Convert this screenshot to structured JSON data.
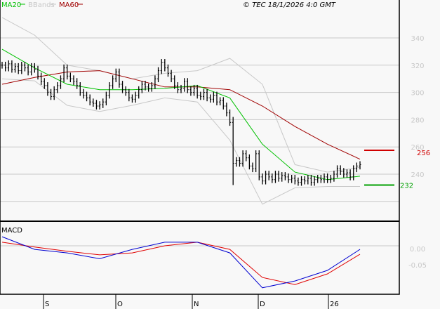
{
  "chart_data": {
    "type": "line",
    "legend": [
      {
        "name": "MA20",
        "color": "#00c000"
      },
      {
        "name": "BBands",
        "color": "#c8c8c8"
      },
      {
        "name": "MA60",
        "color": "#a00000"
      }
    ],
    "legend_placement": "top-left",
    "copyright": "© TEC 18/1/2026 4:0 GMT",
    "x_ticks": [
      "S",
      "O",
      "N",
      "D",
      "26"
    ],
    "price_axis": {
      "ticks": [
        240,
        260,
        280,
        300,
        320,
        340
      ],
      "ylim": [
        200,
        364
      ],
      "grid": true
    },
    "macd_axis": {
      "title": "MACD",
      "ticks": [
        "0.00",
        "-0.05"
      ],
      "values": [
        0,
        -0.05
      ],
      "ylim": [
        -0.145,
        0.08
      ]
    },
    "markers": [
      {
        "label": "256",
        "value": 256,
        "color": "#d00000"
      },
      {
        "label": "232",
        "value": 232,
        "color": "#00a000"
      }
    ],
    "closes": [
      320,
      318,
      321,
      317,
      319,
      316,
      320,
      318,
      315,
      319,
      317,
      312,
      308,
      305,
      300,
      297,
      302,
      305,
      310,
      318,
      312,
      310,
      308,
      305,
      300,
      298,
      296,
      293,
      292,
      290,
      291,
      293,
      298,
      305,
      310,
      315,
      306,
      302,
      300,
      296,
      295,
      298,
      302,
      306,
      304,
      303,
      305,
      310,
      316,
      322,
      318,
      314,
      310,
      305,
      302,
      303,
      308,
      302,
      300,
      303,
      298,
      297,
      300,
      296,
      295,
      298,
      293,
      294,
      290,
      285,
      278,
      248,
      250,
      248,
      255,
      252,
      246,
      244,
      255,
      238,
      235,
      240,
      238,
      236,
      240,
      237,
      239,
      238,
      236,
      237,
      235,
      234,
      236,
      235,
      237,
      234,
      236,
      237,
      236,
      238,
      236,
      237,
      240,
      244,
      242,
      240,
      241,
      238,
      244,
      246,
      247
    ],
    "ma20": [
      331.7,
      318,
      306,
      302,
      302,
      303,
      305,
      296,
      262,
      241.5,
      236,
      238.5
    ],
    "ma60": [
      306,
      311,
      315,
      316,
      310,
      304,
      304,
      302,
      290,
      275,
      262,
      251
    ],
    "bb_upper": [
      355,
      342,
      320,
      316,
      310,
      314,
      316,
      325,
      306,
      247,
      241.5,
      245
    ],
    "bb_lower": [
      310,
      308.5,
      290.5,
      286,
      290.5,
      296,
      293,
      265,
      218,
      230,
      231,
      231
    ],
    "macd": [
      0.028,
      -0.011,
      -0.022,
      -0.04,
      -0.011,
      0.011,
      0.011,
      -0.022,
      -0.13,
      -0.109,
      -0.076,
      -0.011
    ],
    "macd_signal": [
      0.011,
      -0.004,
      -0.017,
      -0.028,
      -0.022,
      0,
      0.011,
      -0.011,
      -0.098,
      -0.12,
      -0.087,
      -0.026
    ]
  }
}
